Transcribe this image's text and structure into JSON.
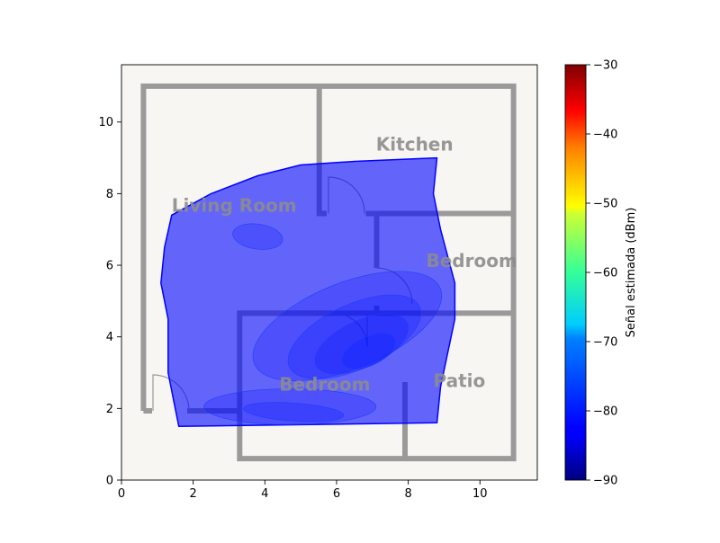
{
  "chart_data": {
    "type": "heatmap",
    "title": "",
    "xlabel": "",
    "ylabel": "",
    "xlim": [
      0,
      11.6
    ],
    "ylim": [
      0,
      11.6
    ],
    "x_ticks": [
      0,
      2,
      4,
      6,
      8,
      10
    ],
    "y_ticks": [
      0,
      2,
      4,
      6,
      8,
      10
    ],
    "grid": false,
    "plot_background": "#f8f6f2",
    "wall_color": "#9a9a9a",
    "room_label_color": "#8c8c8c",
    "rooms": [
      {
        "label": "Living Room",
        "x": 1.4,
        "y": 7.5
      },
      {
        "label": "Kitchen",
        "x": 7.1,
        "y": 9.2
      },
      {
        "label": "Bedroom",
        "x": 8.5,
        "y": 5.95
      },
      {
        "label": "Bedroom",
        "x": 4.4,
        "y": 2.5
      },
      {
        "label": "Patio",
        "x": 8.7,
        "y": 2.6
      }
    ],
    "coverage_polygon": [
      [
        1.6,
        1.5
      ],
      [
        8.8,
        1.6
      ],
      [
        8.9,
        2.6
      ],
      [
        9.3,
        4.5
      ],
      [
        9.3,
        5.5
      ],
      [
        8.9,
        7.0
      ],
      [
        8.7,
        8.0
      ],
      [
        8.8,
        9.0
      ],
      [
        6.5,
        8.9
      ],
      [
        5.0,
        8.8
      ],
      [
        3.8,
        8.5
      ],
      [
        2.5,
        8.0
      ],
      [
        1.4,
        7.4
      ],
      [
        1.2,
        6.5
      ],
      [
        1.1,
        5.5
      ],
      [
        1.3,
        4.5
      ],
      [
        1.3,
        3.0
      ],
      [
        1.5,
        2.0
      ]
    ],
    "coverage_fill_value_dbm": -82,
    "contours": [
      {
        "level_dbm": -81.5,
        "cx": 6.3,
        "cy": 4.3,
        "rx": 2.8,
        "ry": 1.2,
        "rotation_deg": -22
      },
      {
        "level_dbm": -81,
        "cx": 6.5,
        "cy": 4.0,
        "rx": 2.0,
        "ry": 0.9,
        "rotation_deg": -25
      },
      {
        "level_dbm": -80.5,
        "cx": 6.7,
        "cy": 3.8,
        "rx": 1.4,
        "ry": 0.65,
        "rotation_deg": -25
      },
      {
        "level_dbm": -80,
        "cx": 6.9,
        "cy": 3.6,
        "rx": 0.8,
        "ry": 0.4,
        "rotation_deg": -25
      },
      {
        "level_dbm": -81,
        "cx": 3.8,
        "cy": 6.8,
        "rx": 0.7,
        "ry": 0.35,
        "rotation_deg": 8
      },
      {
        "level_dbm": -81.5,
        "cx": 4.7,
        "cy": 2.05,
        "rx": 2.4,
        "ry": 0.5,
        "rotation_deg": 0
      },
      {
        "level_dbm": -81,
        "cx": 4.8,
        "cy": 1.9,
        "rx": 1.4,
        "ry": 0.25,
        "rotation_deg": 4
      }
    ],
    "colorbar": {
      "label": "Señal estimada (dBm)",
      "min": -90,
      "max": -30,
      "ticks": [
        -90,
        -80,
        -70,
        -60,
        -50,
        -40,
        -30
      ],
      "tick_labels": [
        "−90",
        "−80",
        "−70",
        "−60",
        "−50",
        "−40",
        "−30"
      ],
      "colormap": "jet"
    }
  }
}
